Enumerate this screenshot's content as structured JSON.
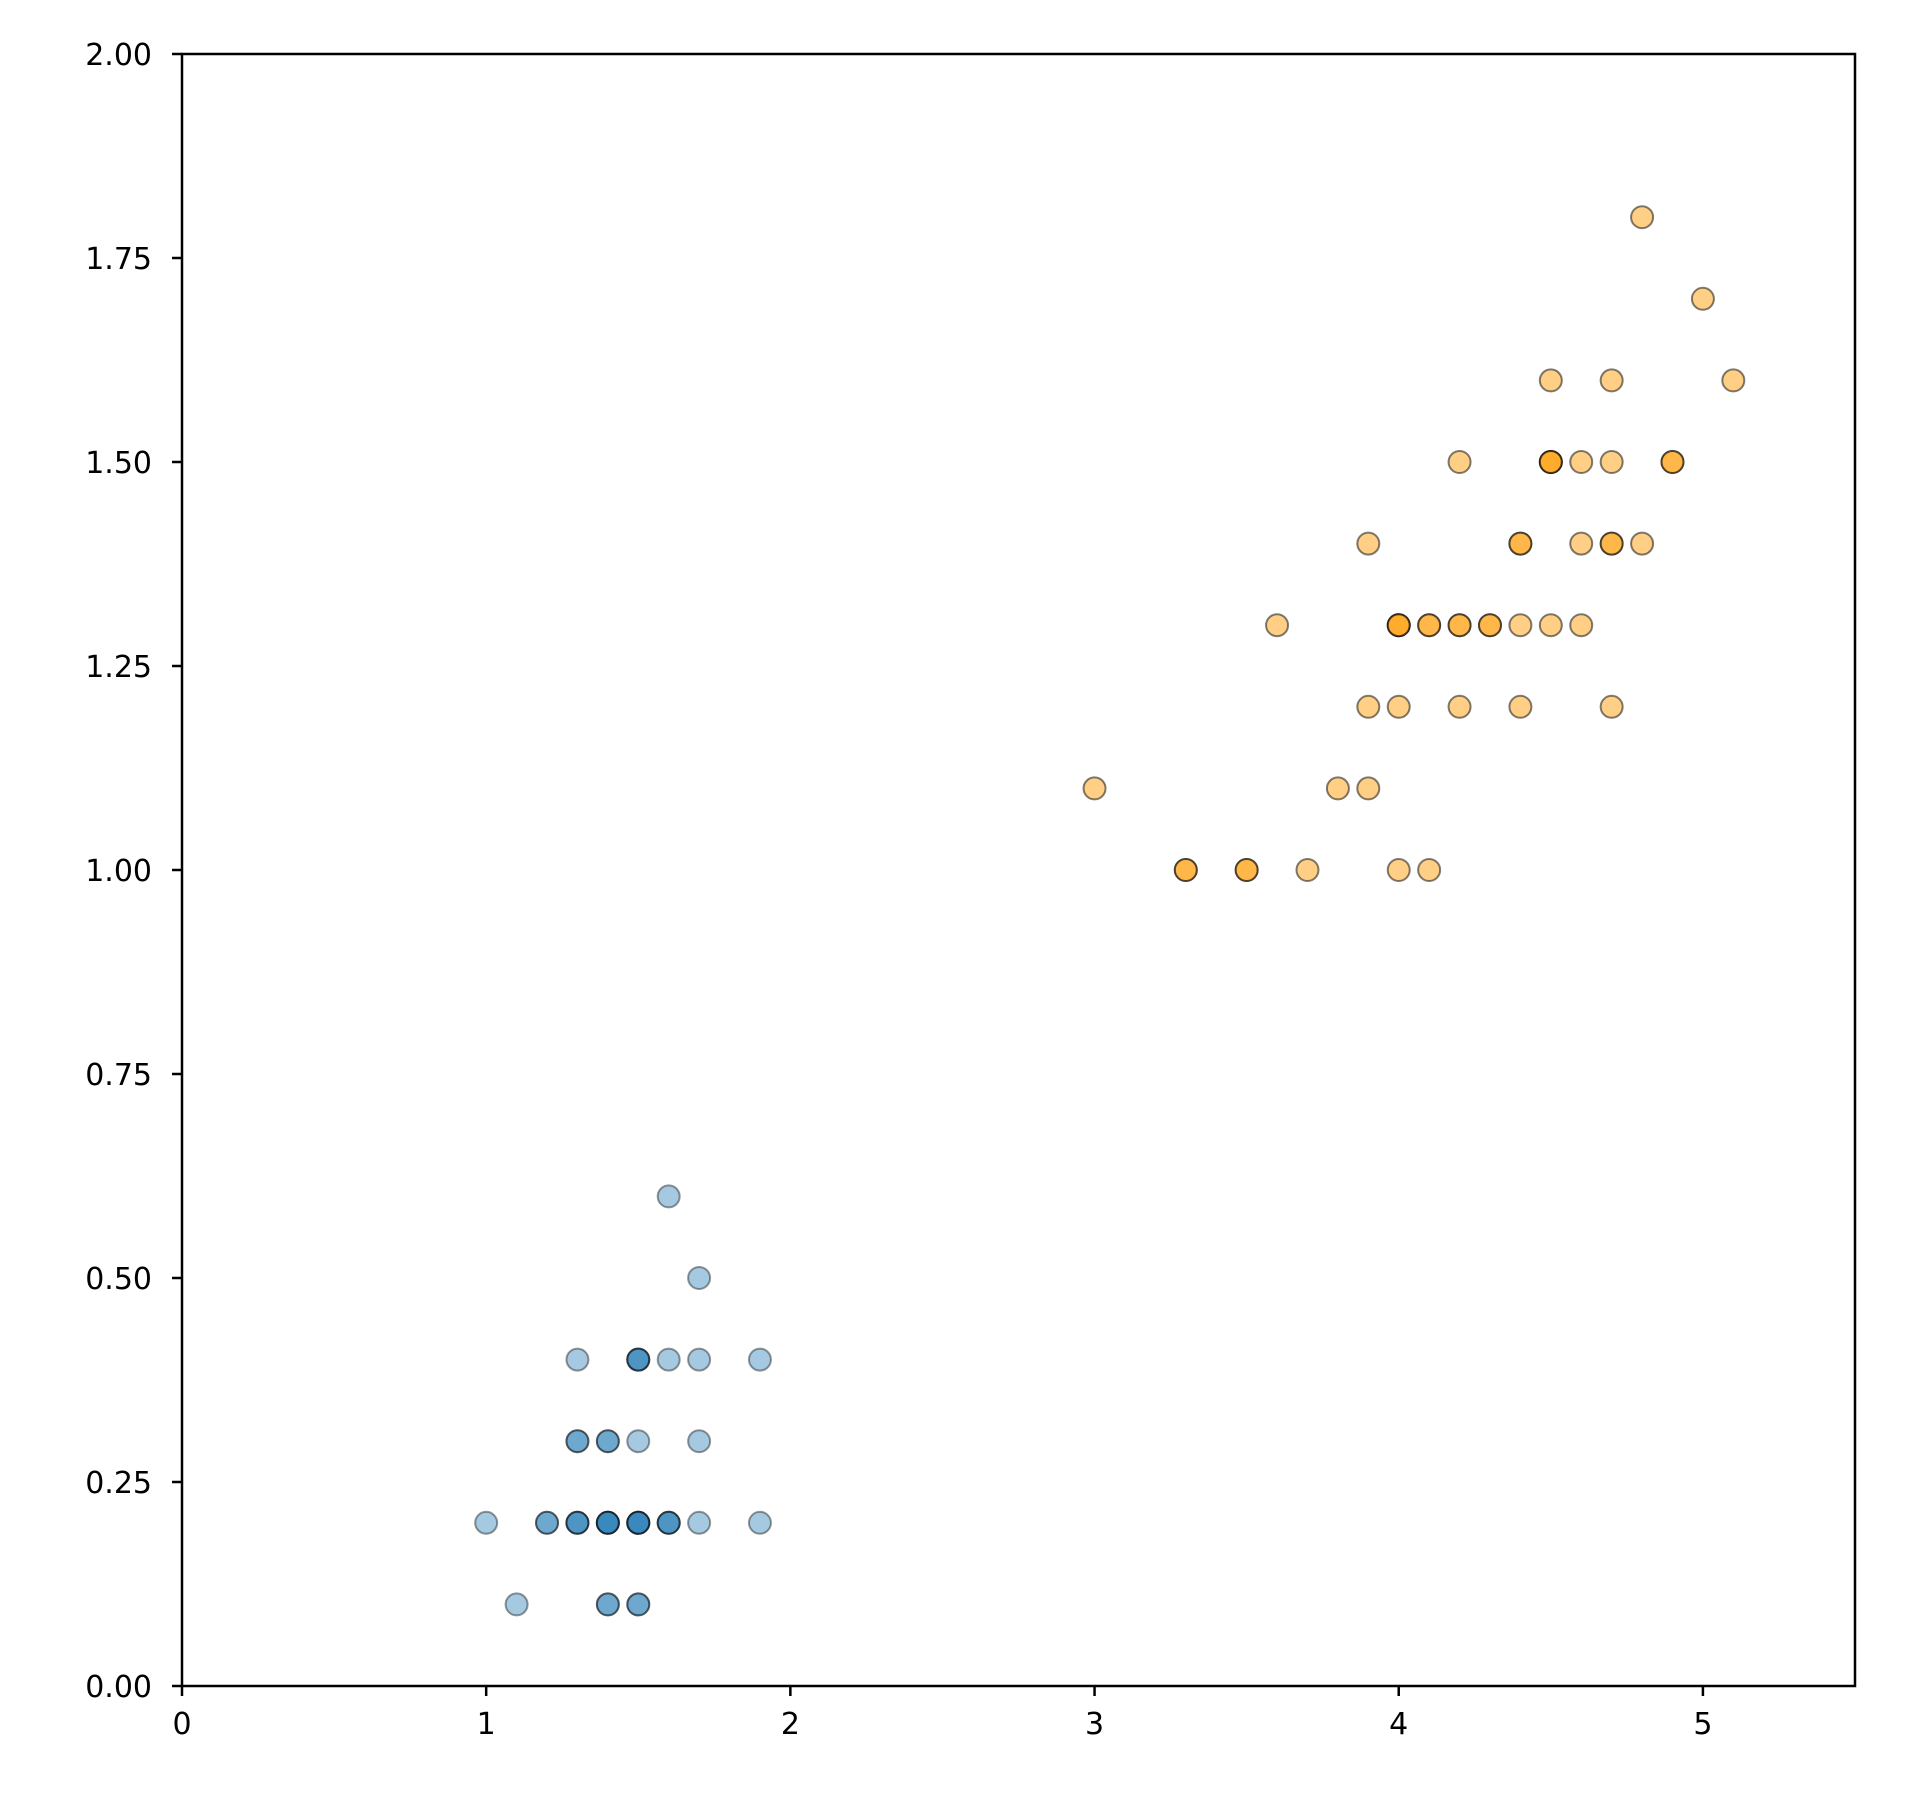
{
  "chart_data": {
    "type": "scatter",
    "title": "",
    "xlabel": "",
    "ylabel": "",
    "xlim": [
      0,
      5.5
    ],
    "ylim": [
      0,
      2.0
    ],
    "grid": false,
    "legend": null,
    "x_ticks": [
      0,
      1,
      2,
      3,
      4,
      5
    ],
    "x_tick_labels": [
      "0",
      "1",
      "2",
      "3",
      "4",
      "5"
    ],
    "y_ticks": [
      0,
      0.25,
      0.5,
      0.75,
      1.0,
      1.25,
      1.5,
      1.75,
      2.0
    ],
    "y_tick_labels": [
      "0.00",
      "0.25",
      "0.50",
      "0.75",
      "1.00",
      "1.25",
      "1.50",
      "1.75",
      "2.00"
    ],
    "series": [
      {
        "name": "blue",
        "color": "#1f77b4",
        "alpha": 0.4,
        "edgecolor": "#000000",
        "points": [
          [
            1.6,
            0.6
          ],
          [
            1.7,
            0.5
          ],
          [
            1.3,
            0.4
          ],
          [
            1.5,
            0.4
          ],
          [
            1.5,
            0.4
          ],
          [
            1.5,
            0.4
          ],
          [
            1.6,
            0.4
          ],
          [
            1.7,
            0.4
          ],
          [
            1.9,
            0.4
          ],
          [
            1.3,
            0.3
          ],
          [
            1.3,
            0.3
          ],
          [
            1.4,
            0.3
          ],
          [
            1.4,
            0.3
          ],
          [
            1.5,
            0.3
          ],
          [
            1.7,
            0.3
          ],
          [
            1.0,
            0.2
          ],
          [
            1.2,
            0.2
          ],
          [
            1.2,
            0.2
          ],
          [
            1.3,
            0.2
          ],
          [
            1.3,
            0.2
          ],
          [
            1.3,
            0.2
          ],
          [
            1.4,
            0.2
          ],
          [
            1.4,
            0.2
          ],
          [
            1.4,
            0.2
          ],
          [
            1.4,
            0.2
          ],
          [
            1.5,
            0.2
          ],
          [
            1.5,
            0.2
          ],
          [
            1.5,
            0.2
          ],
          [
            1.5,
            0.2
          ],
          [
            1.6,
            0.2
          ],
          [
            1.6,
            0.2
          ],
          [
            1.6,
            0.2
          ],
          [
            1.7,
            0.2
          ],
          [
            1.9,
            0.2
          ],
          [
            1.1,
            0.1
          ],
          [
            1.4,
            0.1
          ],
          [
            1.4,
            0.1
          ],
          [
            1.5,
            0.1
          ],
          [
            1.5,
            0.1
          ]
        ]
      },
      {
        "name": "orange",
        "color": "#ff9f0e",
        "alpha": 0.5,
        "edgecolor": "#000000",
        "points": [
          [
            4.8,
            1.8
          ],
          [
            5.0,
            1.7
          ],
          [
            4.5,
            1.6
          ],
          [
            4.7,
            1.6
          ],
          [
            5.1,
            1.6
          ],
          [
            4.2,
            1.5
          ],
          [
            4.5,
            1.5
          ],
          [
            4.5,
            1.5
          ],
          [
            4.5,
            1.5
          ],
          [
            4.6,
            1.5
          ],
          [
            4.7,
            1.5
          ],
          [
            4.9,
            1.5
          ],
          [
            4.9,
            1.5
          ],
          [
            3.9,
            1.4
          ],
          [
            4.4,
            1.4
          ],
          [
            4.4,
            1.4
          ],
          [
            4.6,
            1.4
          ],
          [
            4.7,
            1.4
          ],
          [
            4.7,
            1.4
          ],
          [
            4.8,
            1.4
          ],
          [
            3.6,
            1.3
          ],
          [
            4.0,
            1.3
          ],
          [
            4.0,
            1.3
          ],
          [
            4.0,
            1.3
          ],
          [
            4.1,
            1.3
          ],
          [
            4.1,
            1.3
          ],
          [
            4.2,
            1.3
          ],
          [
            4.2,
            1.3
          ],
          [
            4.3,
            1.3
          ],
          [
            4.3,
            1.3
          ],
          [
            4.4,
            1.3
          ],
          [
            4.5,
            1.3
          ],
          [
            4.6,
            1.3
          ],
          [
            3.9,
            1.2
          ],
          [
            4.0,
            1.2
          ],
          [
            4.2,
            1.2
          ],
          [
            4.4,
            1.2
          ],
          [
            4.7,
            1.2
          ],
          [
            3.0,
            1.1
          ],
          [
            3.8,
            1.1
          ],
          [
            3.9,
            1.1
          ],
          [
            3.3,
            1.0
          ],
          [
            3.3,
            1.0
          ],
          [
            3.5,
            1.0
          ],
          [
            3.5,
            1.0
          ],
          [
            3.7,
            1.0
          ],
          [
            4.0,
            1.0
          ],
          [
            4.1,
            1.0
          ]
        ]
      }
    ]
  }
}
